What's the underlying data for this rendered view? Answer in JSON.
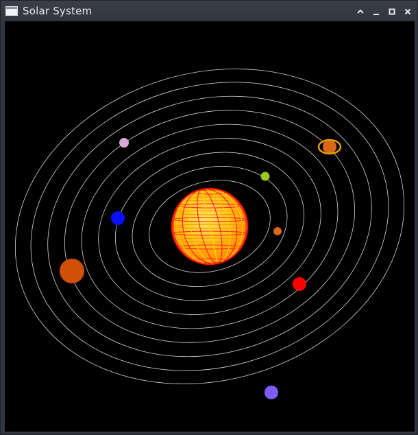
{
  "window": {
    "title": "Solar System",
    "controls": {
      "shade": "chevron-up-icon",
      "minimize": "minimize-icon",
      "maximize": "maximize-icon",
      "close": "close-icon"
    }
  },
  "scene": {
    "background": "#000000",
    "orbit_color": "#d8d8d8",
    "sun": {
      "name": "sun",
      "colors": [
        "#ff1a1a",
        "#ffd000",
        "#ff8c00"
      ]
    },
    "planets": [
      {
        "name": "mercury",
        "color": "#d86818"
      },
      {
        "name": "venus",
        "color": "#ff0000"
      },
      {
        "name": "earth",
        "color": "#7f5cff"
      },
      {
        "name": "mars",
        "color": "#0a10ff"
      },
      {
        "name": "jupiter",
        "color": "#d0500a"
      },
      {
        "name": "saturn",
        "color": "#d86818",
        "ring_color": "#e8a000"
      },
      {
        "name": "uranus",
        "color": "#d8a8d8"
      },
      {
        "name": "neptune",
        "color": "#9ac820"
      }
    ]
  }
}
